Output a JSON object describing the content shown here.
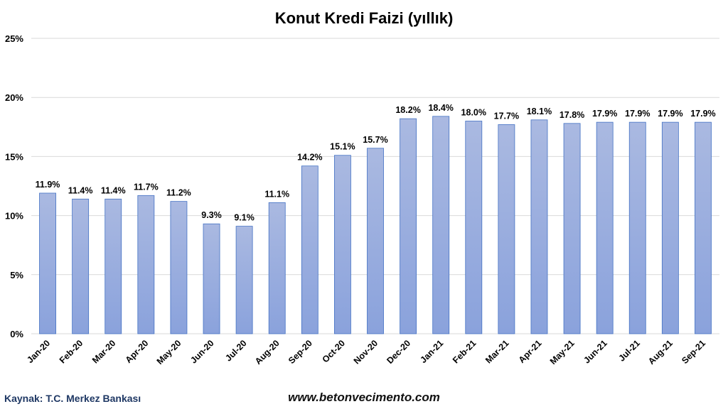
{
  "chart_data": {
    "type": "bar",
    "title": "Konut Kredi Faizi (yıllık)",
    "xlabel": "",
    "ylabel": "",
    "categories": [
      "Jan-20",
      "Feb-20",
      "Mar-20",
      "Apr-20",
      "May-20",
      "Jun-20",
      "Jul-20",
      "Aug-20",
      "Sep-20",
      "Oct-20",
      "Nov-20",
      "Dec-20",
      "Jan-21",
      "Feb-21",
      "Mar-21",
      "Apr-21",
      "May-21",
      "Jun-21",
      "Jul-21",
      "Aug-21",
      "Sep-21"
    ],
    "values": [
      11.9,
      11.4,
      11.4,
      11.7,
      11.2,
      9.3,
      9.1,
      11.1,
      14.2,
      15.1,
      15.7,
      18.2,
      18.4,
      18.0,
      17.7,
      18.1,
      17.8,
      17.9,
      17.9,
      17.9,
      17.9
    ],
    "data_labels": [
      "11.9%",
      "11.4%",
      "11.4%",
      "11.7%",
      "11.2%",
      "9.3%",
      "9.1%",
      "11.1%",
      "14.2%",
      "15.1%",
      "15.7%",
      "18.2%",
      "18.4%",
      "18.0%",
      "17.7%",
      "18.1%",
      "17.8%",
      "17.9%",
      "17.9%",
      "17.9%",
      "17.9%"
    ],
    "yticks": [
      0,
      5,
      10,
      15,
      20,
      25
    ],
    "ytick_labels": [
      "0%",
      "5%",
      "10%",
      "15%",
      "20%",
      "25%"
    ],
    "ylim": [
      0,
      25
    ],
    "grid": true,
    "legend": "none",
    "colors": {
      "bar_top": "#aab9e1",
      "bar_bottom": "#8aa2dc",
      "bar_stroke": "#4472c4",
      "grid": "#d9d9d9"
    }
  },
  "footer": {
    "source": "Kaynak: T.C. Merkez Bankası",
    "website": "www.betonvecimento.com"
  }
}
